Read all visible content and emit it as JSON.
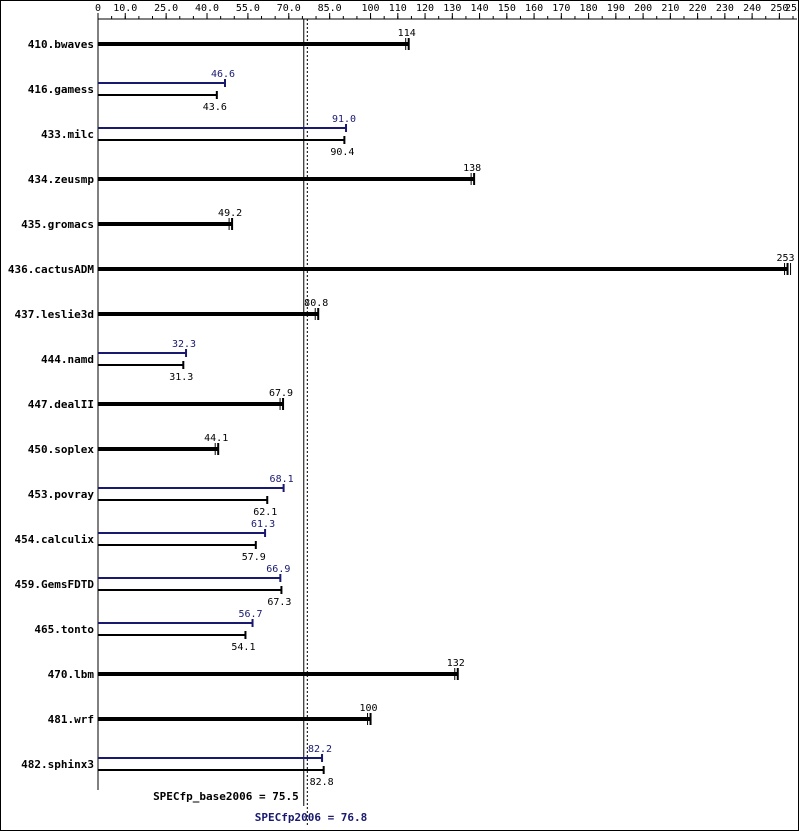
{
  "chart_data": {
    "type": "bar",
    "orientation": "horizontal",
    "x_axis": {
      "position": "top",
      "range": [
        0,
        255
      ],
      "ticks": [
        0,
        10.0,
        25.0,
        40.0,
        55.0,
        70.0,
        85.0,
        100,
        110,
        120,
        130,
        140,
        150,
        160,
        170,
        180,
        190,
        200,
        210,
        220,
        230,
        240,
        250
      ],
      "tick_labels": [
        "0",
        "10.0",
        "25.0",
        "40.0",
        "55.0",
        "70.0",
        "85.0",
        "100",
        "110",
        "120",
        "130",
        "140",
        "150",
        "160",
        "170",
        "180",
        "190",
        "200",
        "210",
        "220",
        "230",
        "240",
        "250"
      ],
      "last_tick_label": "255"
    },
    "colors": {
      "base": "#000000",
      "peak": "#191970"
    },
    "categories": [
      "410.bwaves",
      "416.gamess",
      "433.milc",
      "434.zeusmp",
      "435.gromacs",
      "436.cactusADM",
      "437.leslie3d",
      "444.namd",
      "447.dealII",
      "450.soplex",
      "453.povray",
      "454.calculix",
      "459.GemsFDTD",
      "465.tonto",
      "470.lbm",
      "481.wrf",
      "482.sphinx3"
    ],
    "benchmarks": [
      {
        "name": "410.bwaves",
        "base": 114,
        "base_label": "114",
        "peak": null,
        "peak_label": ""
      },
      {
        "name": "416.gamess",
        "base": 43.6,
        "base_label": "43.6",
        "peak": 46.6,
        "peak_label": "46.6"
      },
      {
        "name": "433.milc",
        "base": 90.4,
        "base_label": "90.4",
        "peak": 91.0,
        "peak_label": "91.0"
      },
      {
        "name": "434.zeusmp",
        "base": 138,
        "base_label": "138",
        "peak": null,
        "peak_label": ""
      },
      {
        "name": "435.gromacs",
        "base": 49.2,
        "base_label": "49.2",
        "peak": null,
        "peak_label": ""
      },
      {
        "name": "436.cactusADM",
        "base": 253,
        "base_label": "253",
        "peak": null,
        "peak_label": ""
      },
      {
        "name": "437.leslie3d",
        "base": 80.8,
        "base_label": "80.8",
        "peak": null,
        "peak_label": ""
      },
      {
        "name": "444.namd",
        "base": 31.3,
        "base_label": "31.3",
        "peak": 32.3,
        "peak_label": "32.3"
      },
      {
        "name": "447.dealII",
        "base": 67.9,
        "base_label": "67.9",
        "peak": null,
        "peak_label": ""
      },
      {
        "name": "450.soplex",
        "base": 44.1,
        "base_label": "44.1",
        "peak": null,
        "peak_label": ""
      },
      {
        "name": "453.povray",
        "base": 62.1,
        "base_label": "62.1",
        "peak": 68.1,
        "peak_label": "68.1"
      },
      {
        "name": "454.calculix",
        "base": 57.9,
        "base_label": "57.9",
        "peak": 61.3,
        "peak_label": "61.3"
      },
      {
        "name": "459.GemsFDTD",
        "base": 67.3,
        "base_label": "67.3",
        "peak": 66.9,
        "peak_label": "66.9"
      },
      {
        "name": "465.tonto",
        "base": 54.1,
        "base_label": "54.1",
        "peak": 56.7,
        "peak_label": "56.7"
      },
      {
        "name": "470.lbm",
        "base": 132,
        "base_label": "132",
        "peak": null,
        "peak_label": ""
      },
      {
        "name": "481.wrf",
        "base": 100,
        "base_label": "100",
        "peak": null,
        "peak_label": ""
      },
      {
        "name": "482.sphinx3",
        "base": 82.8,
        "base_label": "82.8",
        "peak": 82.2,
        "peak_label": "82.2"
      }
    ],
    "summary": {
      "base_label": "SPECfp_base2006 = 75.5",
      "base_value": 75.5,
      "peak_label": "SPECfp2006 = 76.8",
      "peak_value": 76.8
    },
    "grid": false,
    "legend": "none"
  }
}
